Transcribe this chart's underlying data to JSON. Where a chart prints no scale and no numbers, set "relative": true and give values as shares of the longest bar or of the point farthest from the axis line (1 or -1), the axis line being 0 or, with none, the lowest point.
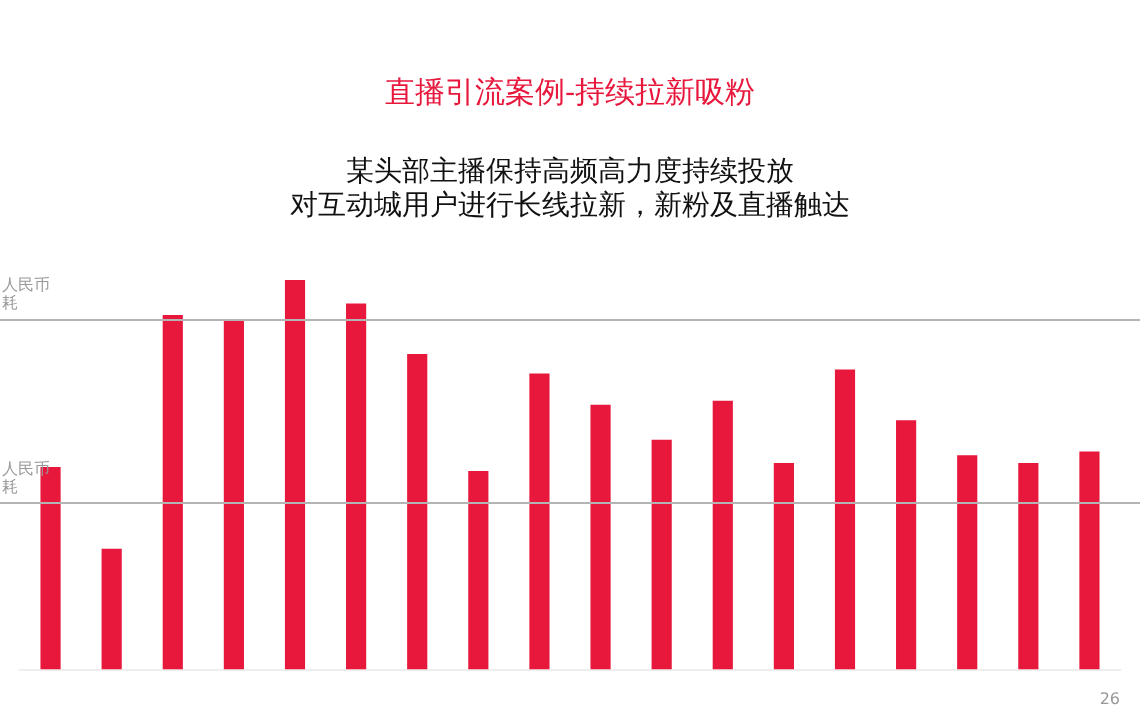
{
  "chart_data": {
    "type": "bar",
    "title": "直播引流案例-持续拉新吸粉",
    "subtitle": "某头部主播保持高频高力度持续投放",
    "categories": [
      null,
      null,
      null,
      null,
      null,
      null,
      null,
      null,
      null,
      null,
      null,
      null,
      null,
      null,
      null,
      null,
      null,
      null
    ],
    "values": [
      0.52,
      0.31,
      0.91,
      0.9,
      1,
      0.94,
      0.81,
      0.51,
      0.76,
      0.68,
      0.59,
      0.69,
      0.53,
      0.77,
      0.64,
      0.55,
      0.53,
      0.56
    ],
    "color": "#e8173c",
    "relative": true,
    "grid": false,
    "legend": false,
    "ref_lines": [
      {
        "axis": "y",
        "value": 0.9,
        "label": "人民币耗",
        "color": "#b4b4b4"
      },
      {
        "axis": "y",
        "value": 0.43,
        "label": "人民币耗",
        "color": "#b4b4b4"
      }
    ],
    "annotations": [
      "对互动城用户进行长线拉新，新粉及直播触达",
      "26"
    ]
  }
}
